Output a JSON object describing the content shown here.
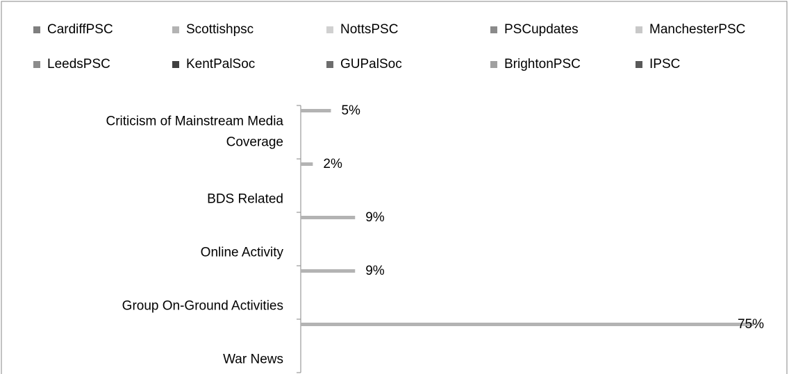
{
  "chart_data": {
    "type": "bar",
    "orientation": "horizontal",
    "categories": [
      [
        "Criticism of Mainstream Media",
        "Coverage"
      ],
      "BDS Related",
      "Online Activity",
      "Group On-Ground Activities",
      "War News"
    ],
    "series": [
      {
        "name": "CardiffPSC",
        "color": "#7f7f7f",
        "values": [
          null,
          null,
          null,
          null,
          null
        ]
      },
      {
        "name": "Scottishpsc",
        "color": "#b3b3b3",
        "values": [
          5,
          2,
          9,
          9,
          75
        ],
        "value_labels": [
          "5%",
          "2%",
          "9%",
          "9%",
          "75%"
        ]
      },
      {
        "name": "NottsPSC",
        "color": "#d0d0d0",
        "values": [
          null,
          null,
          null,
          null,
          null
        ]
      },
      {
        "name": "PSCupdates",
        "color": "#8a8a8a",
        "values": [
          null,
          null,
          null,
          null,
          null
        ]
      },
      {
        "name": "ManchesterPSC",
        "color": "#c8c8c8",
        "values": [
          null,
          null,
          null,
          null,
          null
        ]
      },
      {
        "name": "LeedsPSC",
        "color": "#8c8c8c",
        "values": [
          null,
          null,
          null,
          null,
          null
        ]
      },
      {
        "name": "KentPalSoc",
        "color": "#404040",
        "values": [
          null,
          null,
          null,
          null,
          null
        ]
      },
      {
        "name": "GUPalSoc",
        "color": "#6d6d6d",
        "values": [
          null,
          null,
          null,
          null,
          null
        ]
      },
      {
        "name": "BrightonPSC",
        "color": "#a0a0a0",
        "values": [
          null,
          null,
          null,
          null,
          null
        ]
      },
      {
        "name": "IPSC",
        "color": "#595959",
        "values": [
          null,
          null,
          null,
          null,
          null
        ]
      }
    ],
    "xlim": [
      0,
      75
    ],
    "legend": "top"
  }
}
